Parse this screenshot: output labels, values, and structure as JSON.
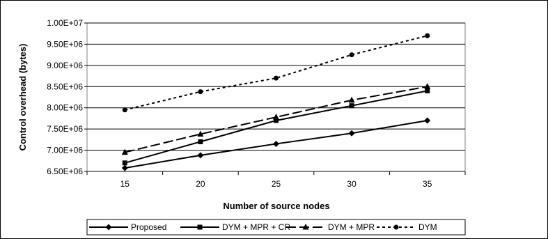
{
  "chart_data": {
    "type": "line",
    "title": "",
    "xlabel": "Number of source nodes",
    "ylabel": "Control overhead (bytes)",
    "categories": [
      "15",
      "20",
      "25",
      "30",
      "35"
    ],
    "ylim": [
      6500000,
      10000000
    ],
    "yticks": [
      "6.50E+06",
      "7.00E+06",
      "7.50E+06",
      "8.00E+06",
      "8.50E+06",
      "9.00E+06",
      "9.50E+06",
      "1.00E+07"
    ],
    "ytick_values": [
      6500000,
      7000000,
      7500000,
      8000000,
      8500000,
      9000000,
      9500000,
      10000000
    ],
    "grid": "horizontal",
    "legend_position": "bottom",
    "series": [
      {
        "name": "Proposed",
        "marker": "diamond",
        "dash": "solid",
        "values": [
          6580000,
          6880000,
          7150000,
          7400000,
          7700000
        ]
      },
      {
        "name": "DYM + MPR + CR",
        "marker": "square",
        "dash": "solid",
        "values": [
          6700000,
          7200000,
          7700000,
          8050000,
          8400000
        ]
      },
      {
        "name": "DYM + MPR",
        "marker": "triangle",
        "dash": "long-dash",
        "values": [
          6950000,
          7380000,
          7780000,
          8180000,
          8500000
        ]
      },
      {
        "name": "DYM",
        "marker": "circle",
        "dash": "dotted",
        "values": [
          7950000,
          8380000,
          8700000,
          9250000,
          9700000
        ]
      }
    ]
  }
}
